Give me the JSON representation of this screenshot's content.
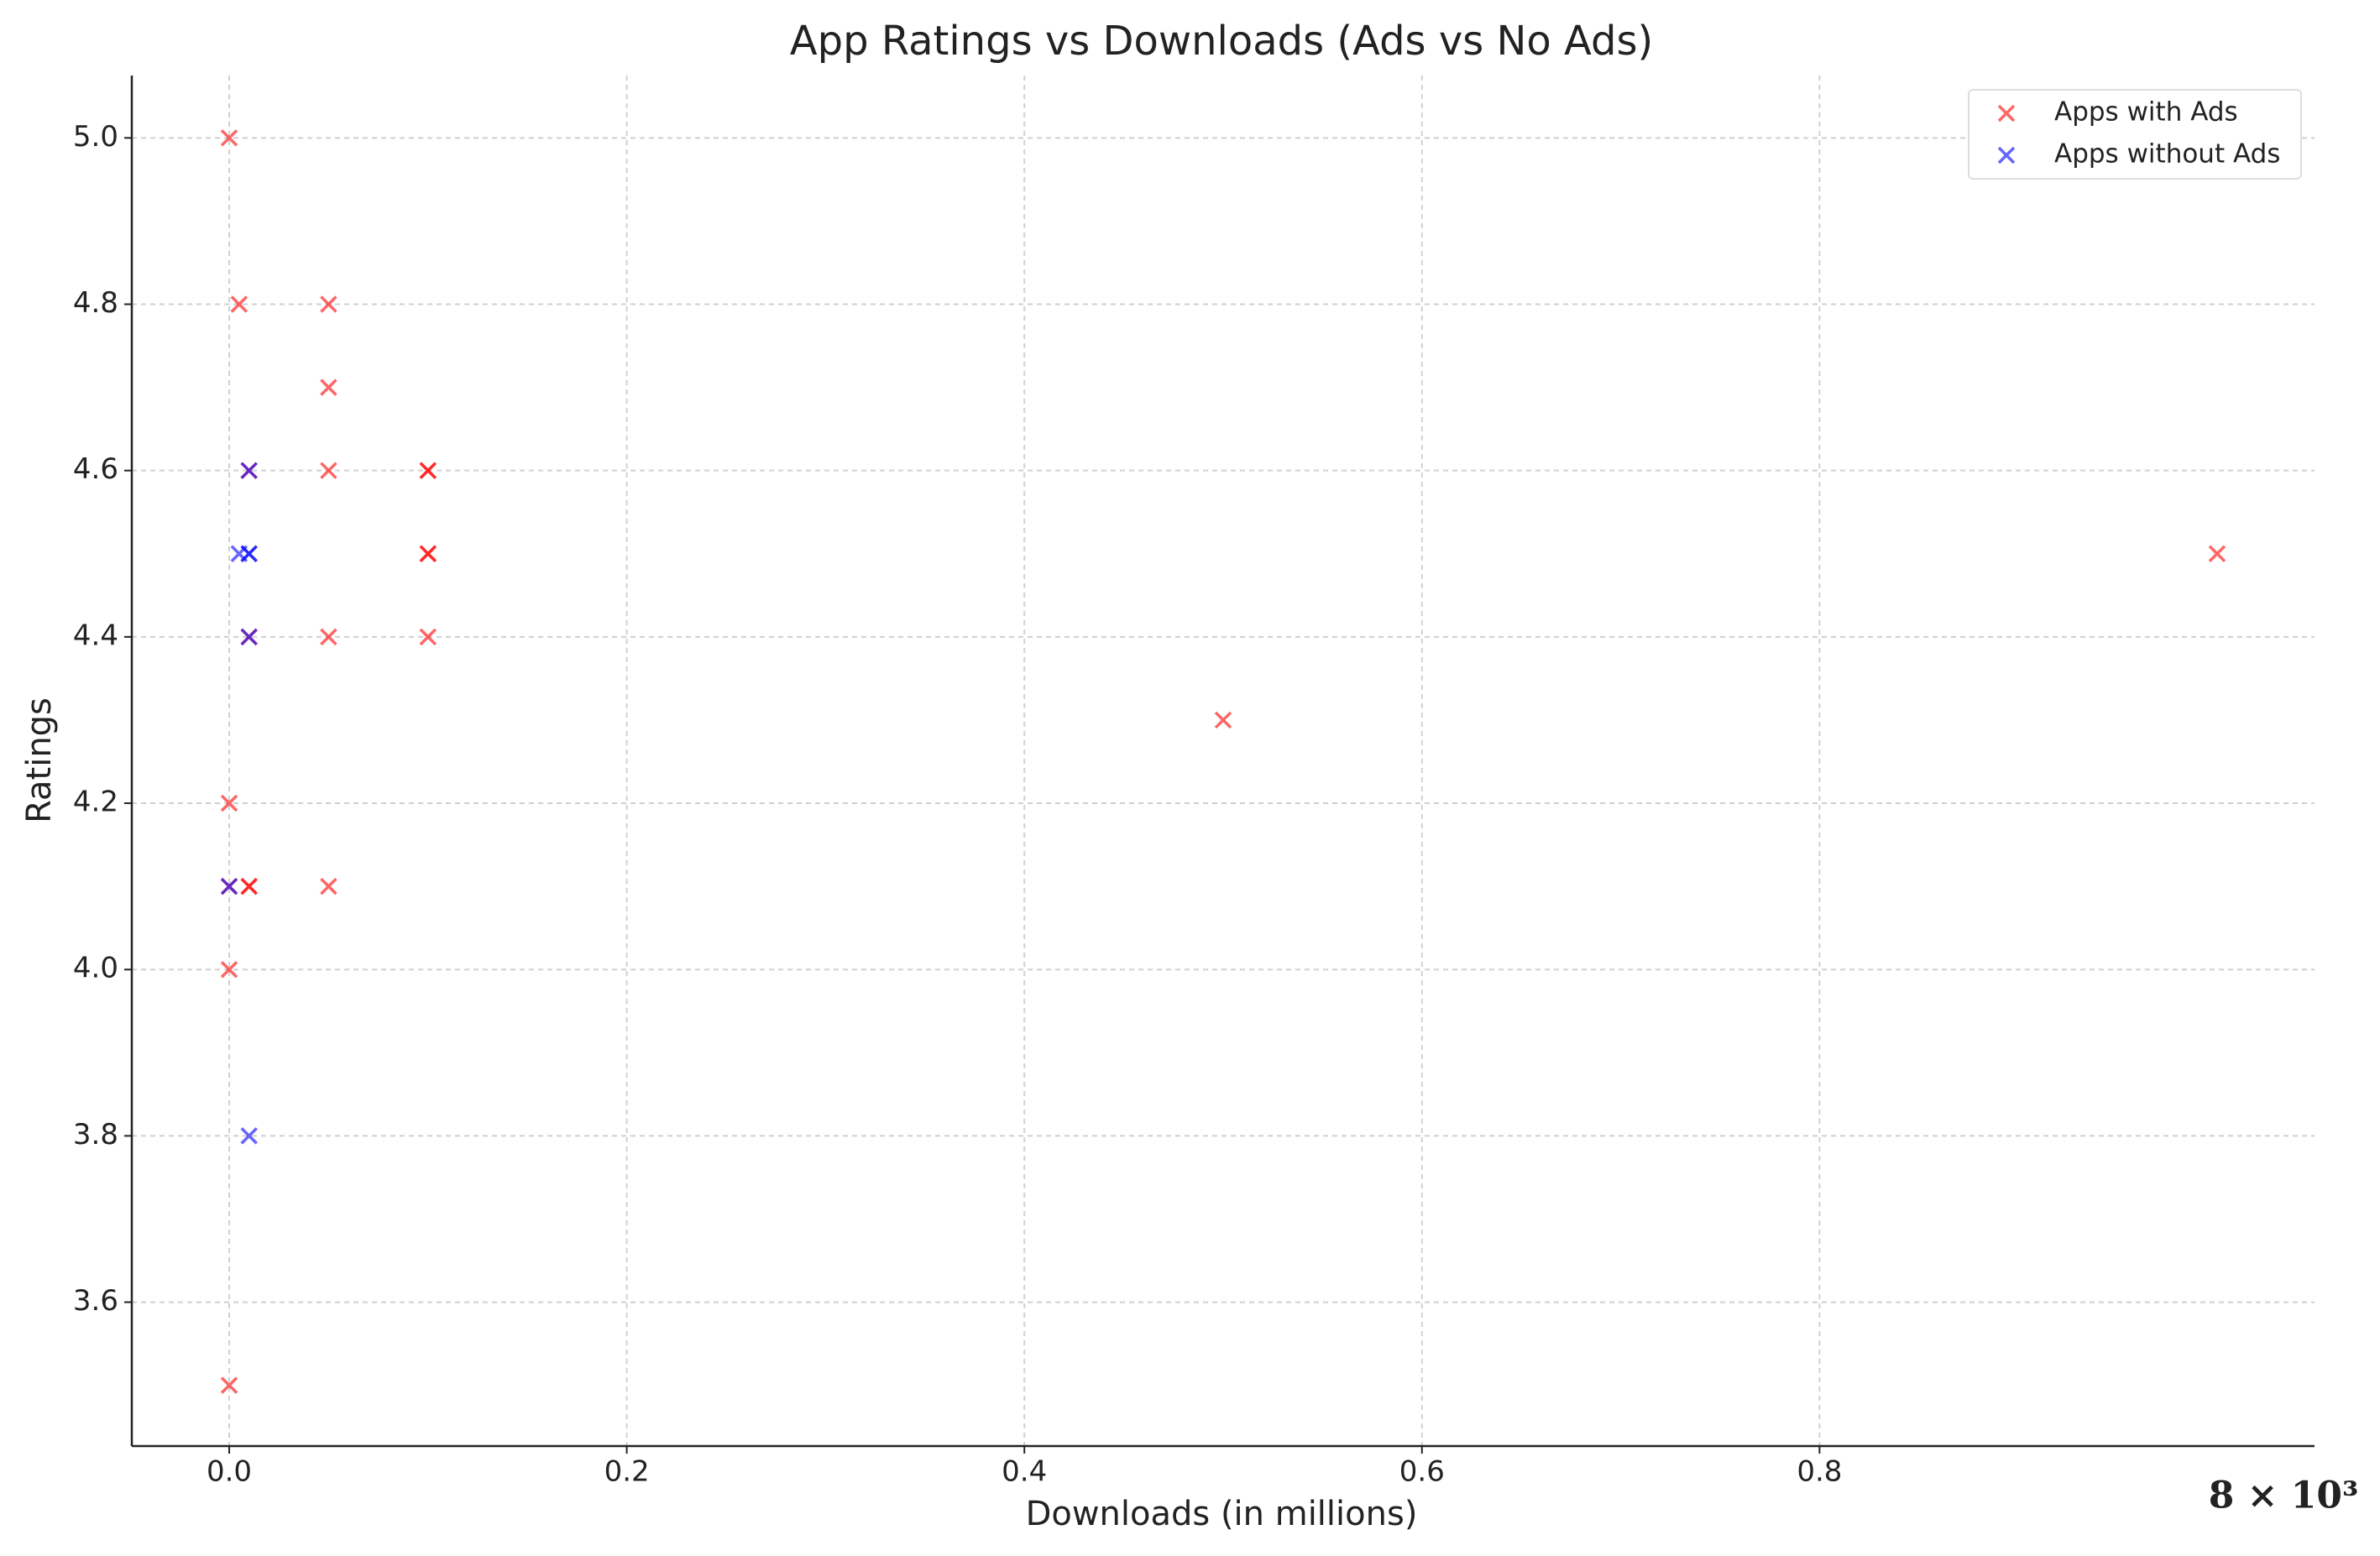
{
  "chart_data": {
    "type": "scatter",
    "title": "App Ratings vs Downloads (Ads vs No Ads)",
    "x_label": "Downloads (in millions)",
    "y_label": "Ratings",
    "annotation": "8 × 10³",
    "xlim": [
      -0.049,
      1.049
    ],
    "ylim": [
      3.427,
      5.075
    ],
    "xticks": [
      {
        "value": 0,
        "label": "0.0"
      },
      0.2,
      0.4,
      0.6,
      0.8
    ],
    "yticks": [
      3.6,
      3.8,
      {
        "value": 4,
        "label": "4.0"
      },
      4.2,
      4.4,
      4.6,
      4.8,
      {
        "value": 5,
        "label": "5.0"
      }
    ],
    "grid": true,
    "legend": "upper right",
    "series": [
      {
        "name": "Apps with Ads",
        "color": "#ff0000",
        "x": [
          0,
          0.005,
          0.05,
          0.05,
          0.05,
          0.1,
          0.1,
          0.1,
          0.1,
          0.05,
          0.1,
          0.5,
          1.0,
          0,
          0.01,
          0.01,
          0.05,
          0,
          0,
          0.01,
          0.01,
          0
        ],
        "values": [
          5.0,
          4.8,
          4.8,
          4.7,
          4.6,
          4.6,
          4.6,
          4.5,
          4.5,
          4.4,
          4.4,
          4.3,
          4.5,
          4.2,
          4.1,
          4.1,
          4.1,
          4.0,
          3.5,
          4.6,
          4.4,
          4.1
        ]
      },
      {
        "name": "Apps without Ads",
        "color": "#0000ff",
        "x": [
          0.01,
          0.005,
          0.01,
          0.01,
          0.01,
          0,
          0.01
        ],
        "values": [
          4.6,
          4.5,
          4.5,
          4.5,
          4.4,
          4.1,
          3.8
        ]
      }
    ]
  }
}
